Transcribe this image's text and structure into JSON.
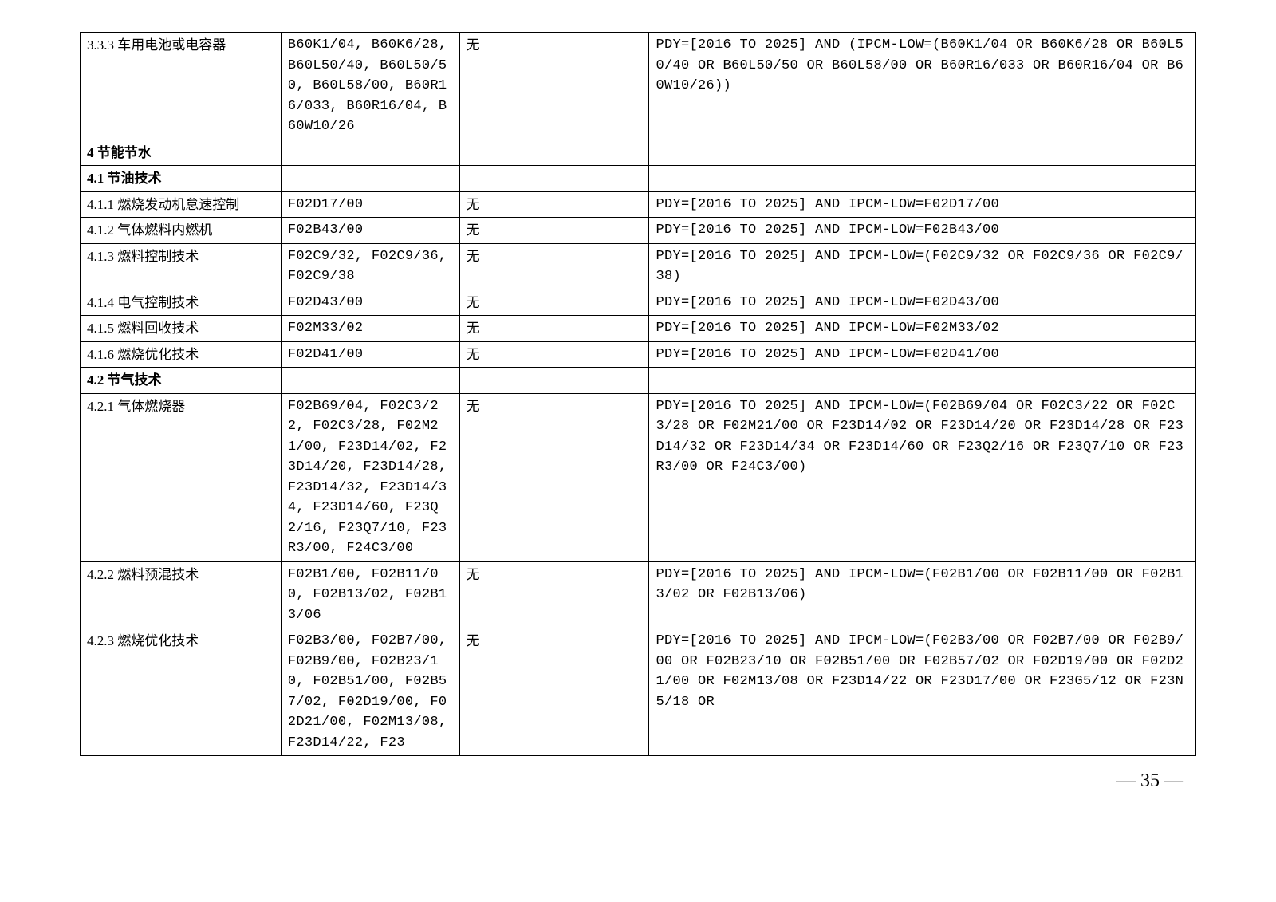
{
  "table": {
    "border_color": "#000000",
    "text_color": "#000000",
    "background_color": "#ffffff",
    "font_size": 17,
    "columns_width_pct": [
      18,
      16,
      17,
      49
    ],
    "rows": [
      {
        "bold": false,
        "cells": [
          "3.3.3 车用电池或电容器",
          "B60K1/04, B60K6/28, B60L50/40, B60L50/50, B60L58/00, B60R16/033, B60R16/04, B60W10/26",
          "无",
          "PDY=[2016 TO 2025] AND (IPCM-LOW=(B60K1/04 OR B60K6/28 OR B60L50/40 OR B60L50/50 OR B60L58/00 OR B60R16/033 OR B60R16/04 OR B60W10/26))"
        ]
      },
      {
        "bold": true,
        "cells": [
          "4 节能节水",
          "",
          "",
          ""
        ]
      },
      {
        "bold": true,
        "cells": [
          "4.1 节油技术",
          "",
          "",
          ""
        ]
      },
      {
        "bold": false,
        "cells": [
          "4.1.1 燃烧发动机怠速控制",
          "F02D17/00",
          "无",
          "PDY=[2016 TO 2025] AND IPCM-LOW=F02D17/00"
        ]
      },
      {
        "bold": false,
        "cells": [
          "4.1.2 气体燃料内燃机",
          "F02B43/00",
          "无",
          "PDY=[2016 TO 2025] AND IPCM-LOW=F02B43/00"
        ]
      },
      {
        "bold": false,
        "cells": [
          "4.1.3 燃料控制技术",
          "F02C9/32, F02C9/36, F02C9/38",
          "无",
          "PDY=[2016 TO 2025] AND IPCM-LOW=(F02C9/32 OR F02C9/36 OR F02C9/38)"
        ]
      },
      {
        "bold": false,
        "cells": [
          "4.1.4 电气控制技术",
          "F02D43/00",
          "无",
          "PDY=[2016 TO 2025] AND IPCM-LOW=F02D43/00"
        ]
      },
      {
        "bold": false,
        "cells": [
          "4.1.5 燃料回收技术",
          "F02M33/02",
          "无",
          "PDY=[2016 TO 2025] AND IPCM-LOW=F02M33/02"
        ]
      },
      {
        "bold": false,
        "cells": [
          "4.1.6 燃烧优化技术",
          "F02D41/00",
          "无",
          "PDY=[2016 TO 2025] AND IPCM-LOW=F02D41/00"
        ]
      },
      {
        "bold": true,
        "cells": [
          "4.2 节气技术",
          "",
          "",
          ""
        ]
      },
      {
        "bold": false,
        "cells": [
          "4.2.1 气体燃烧器",
          "F02B69/04, F02C3/22, F02C3/28, F02M21/00, F23D14/02, F23D14/20, F23D14/28, F23D14/32, F23D14/34, F23D14/60, F23Q2/16, F23Q7/10, F23R3/00, F24C3/00",
          "无",
          "PDY=[2016 TO 2025] AND IPCM-LOW=(F02B69/04 OR F02C3/22 OR F02C3/28 OR F02M21/00 OR F23D14/02 OR F23D14/20 OR F23D14/28 OR F23D14/32 OR F23D14/34 OR F23D14/60 OR F23Q2/16 OR F23Q7/10 OR F23R3/00 OR F24C3/00)"
        ]
      },
      {
        "bold": false,
        "cells": [
          "4.2.2 燃料预混技术",
          "F02B1/00, F02B11/00, F02B13/02, F02B13/06",
          "无",
          "PDY=[2016 TO 2025] AND IPCM-LOW=(F02B1/00 OR F02B11/00 OR F02B13/02 OR F02B13/06)"
        ]
      },
      {
        "bold": false,
        "cells": [
          "4.2.3 燃烧优化技术",
          "F02B3/00, F02B7/00, F02B9/00, F02B23/10, F02B51/00, F02B57/02, F02D19/00, F02D21/00, F02M13/08, F23D14/22, F23",
          "无",
          "PDY=[2016 TO 2025] AND IPCM-LOW=(F02B3/00 OR F02B7/00 OR F02B9/00 OR F02B23/10 OR F02B51/00 OR F02B57/02 OR F02D19/00 OR F02D21/00 OR F02M13/08 OR F23D14/22 OR F23D17/00 OR F23G5/12 OR F23N5/18 OR"
        ]
      }
    ]
  },
  "page_number": "— 35 —"
}
